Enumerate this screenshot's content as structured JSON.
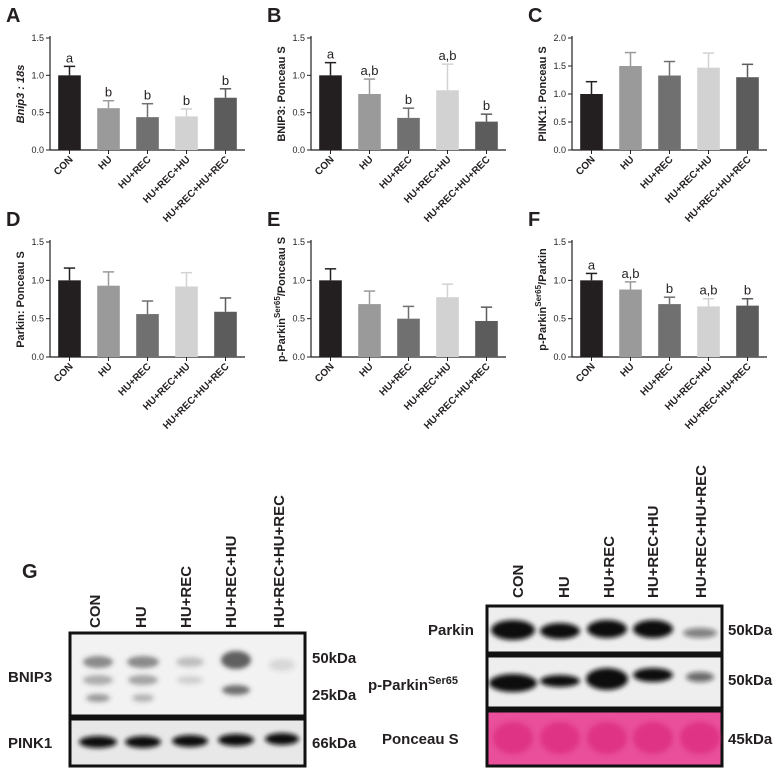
{
  "chart_data": [
    {
      "type": "bar",
      "panel": "A",
      "y_label": "Bnip3 : 18s",
      "categories": [
        "CON",
        "HU",
        "HU+REC",
        "HU+REC+HU",
        "HU+REC+HU+REC"
      ],
      "values": [
        1.0,
        0.56,
        0.44,
        0.45,
        0.7
      ],
      "errors": [
        0.12,
        0.1,
        0.18,
        0.1,
        0.12
      ],
      "annotations": [
        "a",
        "b",
        "b",
        "b",
        "b"
      ],
      "colors": [
        "#231f20",
        "#9a9a9a",
        "#707070",
        "#d2d2d2",
        "#5c5c5c"
      ],
      "ylim": [
        0,
        1.5
      ],
      "yticks": [
        {
          "value": 0,
          "label": "0.0"
        },
        {
          "value": 0.5,
          "label": "0.5"
        },
        {
          "value": 1,
          "label": "1.0"
        },
        {
          "value": 1.5,
          "label": "1.5"
        }
      ]
    },
    {
      "type": "bar",
      "panel": "B",
      "y_label": "BNIP3: Ponceau S",
      "categories": [
        "CON",
        "HU",
        "HU+REC",
        "HU+REC+HU",
        "HU+REC+HU+REC"
      ],
      "values": [
        1.0,
        0.75,
        0.43,
        0.8,
        0.38
      ],
      "errors": [
        0.17,
        0.2,
        0.13,
        0.35,
        0.1
      ],
      "annotations": [
        "a",
        "a,b",
        "b",
        "a,b",
        "b"
      ],
      "colors": [
        "#231f20",
        "#9a9a9a",
        "#707070",
        "#d2d2d2",
        "#5c5c5c"
      ],
      "ylim": [
        0,
        1.5
      ],
      "yticks": [
        {
          "value": 0,
          "label": "0.0"
        },
        {
          "value": 0.5,
          "label": "0.5"
        },
        {
          "value": 1,
          "label": "1.0"
        },
        {
          "value": 1.5,
          "label": "1.5"
        }
      ]
    },
    {
      "type": "bar",
      "panel": "C",
      "y_label": "PINK1: Ponceau S",
      "categories": [
        "CON",
        "HU",
        "HU+REC",
        "HU+REC+HU",
        "HU+REC+HU+REC"
      ],
      "values": [
        1.0,
        1.5,
        1.33,
        1.47,
        1.3
      ],
      "errors": [
        0.22,
        0.24,
        0.25,
        0.26,
        0.23
      ],
      "colors": [
        "#231f20",
        "#9a9a9a",
        "#707070",
        "#d2d2d2",
        "#5c5c5c"
      ],
      "ylim": [
        0,
        2
      ],
      "yticks": [
        {
          "value": 0,
          "label": "0.0"
        },
        {
          "value": 0.5,
          "label": "0.5"
        },
        {
          "value": 1,
          "label": "1.0"
        },
        {
          "value": 1.5,
          "label": "1.5"
        },
        {
          "value": 2,
          "label": "2.0"
        }
      ]
    },
    {
      "type": "bar",
      "panel": "D",
      "y_label": "Parkin: Ponceau S",
      "categories": [
        "CON",
        "HU",
        "HU+REC",
        "HU+REC+HU",
        "HU+REC+HU+REC"
      ],
      "values": [
        1.0,
        0.93,
        0.56,
        0.92,
        0.59
      ],
      "errors": [
        0.16,
        0.18,
        0.17,
        0.18,
        0.18
      ],
      "colors": [
        "#231f20",
        "#9a9a9a",
        "#707070",
        "#d2d2d2",
        "#5c5c5c"
      ],
      "ylim": [
        0,
        1.5
      ],
      "yticks": [
        {
          "value": 0,
          "label": "0.0"
        },
        {
          "value": 0.5,
          "label": "0.5"
        },
        {
          "value": 1,
          "label": "1.0"
        },
        {
          "value": 1.5,
          "label": "1.5"
        }
      ]
    },
    {
      "type": "bar",
      "panel": "E",
      "y_label": "p-Parkin",
      "y_label_sup": "Ser65",
      "y_label_tail": "/Ponceau S",
      "categories": [
        "CON",
        "HU",
        "HU+REC",
        "HU+REC+HU",
        "HU+REC+HU+REC"
      ],
      "values": [
        1.0,
        0.69,
        0.5,
        0.78,
        0.47
      ],
      "errors": [
        0.15,
        0.17,
        0.16,
        0.17,
        0.18
      ],
      "colors": [
        "#231f20",
        "#9a9a9a",
        "#707070",
        "#d2d2d2",
        "#5c5c5c"
      ],
      "ylim": [
        0,
        1.5
      ],
      "yticks": [
        {
          "value": 0,
          "label": "0.0"
        },
        {
          "value": 0.5,
          "label": "0.5"
        },
        {
          "value": 1,
          "label": "1.0"
        },
        {
          "value": 1.5,
          "label": "1.5"
        }
      ]
    },
    {
      "type": "bar",
      "panel": "F",
      "y_label": "p-Parkin",
      "y_label_sup": "Ser65",
      "y_label_tail": "/Parkin",
      "categories": [
        "CON",
        "HU",
        "HU+REC",
        "HU+REC+HU",
        "HU+REC+HU+REC"
      ],
      "values": [
        1.0,
        0.88,
        0.69,
        0.66,
        0.67
      ],
      "errors": [
        0.09,
        0.1,
        0.09,
        0.1,
        0.09
      ],
      "annotations": [
        "a",
        "a,b",
        "b",
        "a,b",
        "b"
      ],
      "colors": [
        "#231f20",
        "#9a9a9a",
        "#707070",
        "#d2d2d2",
        "#5c5c5c"
      ],
      "ylim": [
        0,
        1.5
      ],
      "yticks": [
        {
          "value": 0,
          "label": "0.0"
        },
        {
          "value": 0.5,
          "label": "0.5"
        },
        {
          "value": 1,
          "label": "1.0"
        },
        {
          "value": 1.5,
          "label": "1.5"
        }
      ]
    }
  ],
  "blot": {
    "panel": "G",
    "left": {
      "lanes": [
        "CON",
        "HU",
        "HU+REC",
        "HU+REC+HU",
        "HU+REC+HU+REC"
      ],
      "rows": [
        "BNIP3",
        "PINK1"
      ],
      "sizes": [
        "50kDa",
        "25kDa",
        "66kDa"
      ]
    },
    "right": {
      "lanes": [
        "CON",
        "HU",
        "HU+REC",
        "HU+REC+HU",
        "HU+REC+HU+REC"
      ],
      "rows": [
        "Parkin",
        "p-Parkin",
        "Ponceau S"
      ],
      "phospho_sup": "Ser65",
      "sizes": [
        "50kDa",
        "50kDa",
        "45kDa"
      ]
    }
  }
}
